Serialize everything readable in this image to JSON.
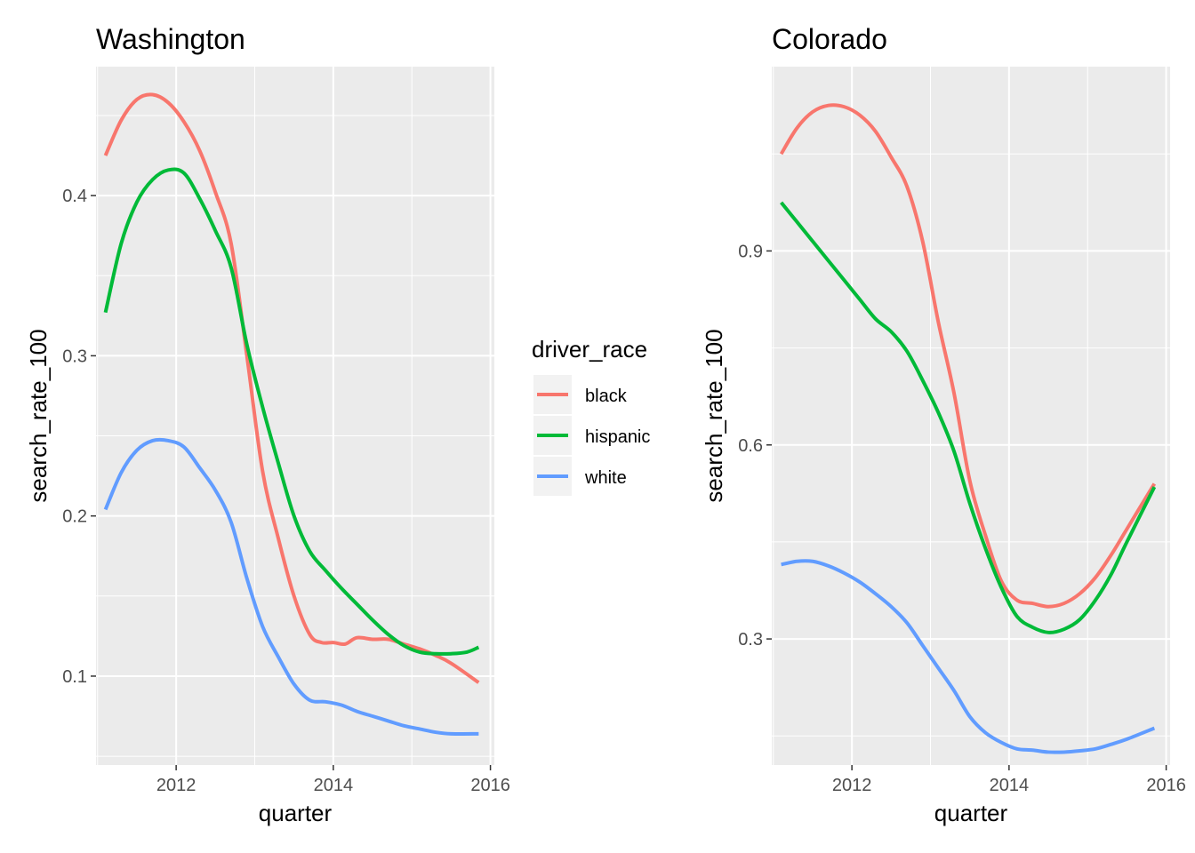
{
  "legend": {
    "title": "driver_race",
    "items": [
      {
        "label": "black",
        "color": "#F8766D"
      },
      {
        "label": "hispanic",
        "color": "#00BA38"
      },
      {
        "label": "white",
        "color": "#619CFF"
      }
    ]
  },
  "chart_data": [
    {
      "type": "line",
      "title": "Washington",
      "xlabel": "quarter",
      "ylabel": "search_rate_100",
      "xlim": [
        2010.98,
        2016.05
      ],
      "ylim": [
        0.0445,
        0.4805
      ],
      "x_ticks": [
        2012,
        2014,
        2016
      ],
      "y_ticks": [
        0.1,
        0.2,
        0.3,
        0.4
      ],
      "grid": true,
      "series": [
        {
          "name": "black",
          "color": "#F8766D",
          "x": [
            2011.1,
            2011.3,
            2011.5,
            2011.7,
            2011.9,
            2012.1,
            2012.3,
            2012.5,
            2012.7,
            2012.9,
            2013.1,
            2013.3,
            2013.5,
            2013.7,
            2013.85,
            2014.0,
            2014.15,
            2014.3,
            2014.5,
            2014.7,
            2014.9,
            2015.1,
            2015.3,
            2015.5,
            2015.85
          ],
          "y": [
            0.425,
            0.447,
            0.46,
            0.463,
            0.458,
            0.446,
            0.428,
            0.402,
            0.37,
            0.3,
            0.228,
            0.186,
            0.15,
            0.126,
            0.121,
            0.121,
            0.12,
            0.124,
            0.123,
            0.123,
            0.12,
            0.117,
            0.113,
            0.108,
            0.096
          ]
        },
        {
          "name": "hispanic",
          "color": "#00BA38",
          "x": [
            2011.1,
            2011.3,
            2011.5,
            2011.7,
            2011.9,
            2012.1,
            2012.3,
            2012.5,
            2012.7,
            2012.9,
            2013.1,
            2013.3,
            2013.5,
            2013.7,
            2013.9,
            2014.1,
            2014.3,
            2014.5,
            2014.7,
            2014.9,
            2015.1,
            2015.3,
            2015.5,
            2015.7,
            2015.85
          ],
          "y": [
            0.327,
            0.37,
            0.396,
            0.41,
            0.416,
            0.414,
            0.398,
            0.378,
            0.355,
            0.307,
            0.268,
            0.233,
            0.2,
            0.178,
            0.166,
            0.155,
            0.145,
            0.135,
            0.126,
            0.119,
            0.115,
            0.114,
            0.114,
            0.115,
            0.118
          ]
        },
        {
          "name": "white",
          "color": "#619CFF",
          "x": [
            2011.1,
            2011.3,
            2011.5,
            2011.7,
            2011.9,
            2012.1,
            2012.3,
            2012.5,
            2012.7,
            2012.9,
            2013.1,
            2013.3,
            2013.5,
            2013.7,
            2013.9,
            2014.1,
            2014.3,
            2014.5,
            2014.7,
            2014.9,
            2015.1,
            2015.3,
            2015.5,
            2015.85
          ],
          "y": [
            0.204,
            0.227,
            0.241,
            0.247,
            0.247,
            0.243,
            0.23,
            0.216,
            0.196,
            0.161,
            0.131,
            0.112,
            0.095,
            0.085,
            0.084,
            0.082,
            0.078,
            0.075,
            0.072,
            0.069,
            0.067,
            0.065,
            0.064,
            0.064
          ]
        }
      ]
    },
    {
      "type": "line",
      "title": "Colorado",
      "xlabel": "quarter",
      "ylabel": "search_rate_100",
      "xlim": [
        2010.98,
        2016.05
      ],
      "ylim": [
        0.105,
        1.185
      ],
      "x_ticks": [
        2012,
        2014,
        2016
      ],
      "y_ticks": [
        0.3,
        0.6,
        0.9
      ],
      "grid": true,
      "series": [
        {
          "name": "black",
          "color": "#F8766D",
          "x": [
            2011.1,
            2011.3,
            2011.5,
            2011.7,
            2011.9,
            2012.1,
            2012.3,
            2012.5,
            2012.7,
            2012.9,
            2013.1,
            2013.3,
            2013.5,
            2013.7,
            2013.9,
            2014.1,
            2014.3,
            2014.5,
            2014.7,
            2014.9,
            2015.1,
            2015.3,
            2015.5,
            2015.85
          ],
          "y": [
            1.05,
            1.09,
            1.115,
            1.125,
            1.123,
            1.11,
            1.085,
            1.045,
            1.0,
            0.915,
            0.79,
            0.68,
            0.545,
            0.46,
            0.39,
            0.36,
            0.355,
            0.35,
            0.355,
            0.37,
            0.395,
            0.43,
            0.47,
            0.54
          ]
        },
        {
          "name": "hispanic",
          "color": "#00BA38",
          "x": [
            2011.1,
            2011.3,
            2011.5,
            2011.7,
            2011.9,
            2012.1,
            2012.3,
            2012.5,
            2012.7,
            2012.9,
            2013.1,
            2013.3,
            2013.5,
            2013.7,
            2013.9,
            2014.1,
            2014.3,
            2014.5,
            2014.7,
            2014.9,
            2015.1,
            2015.3,
            2015.5,
            2015.85
          ],
          "y": [
            0.975,
            0.945,
            0.915,
            0.885,
            0.855,
            0.825,
            0.795,
            0.775,
            0.745,
            0.7,
            0.65,
            0.59,
            0.51,
            0.44,
            0.38,
            0.335,
            0.318,
            0.31,
            0.315,
            0.33,
            0.36,
            0.4,
            0.45,
            0.535
          ]
        },
        {
          "name": "white",
          "color": "#619CFF",
          "x": [
            2011.1,
            2011.3,
            2011.5,
            2011.7,
            2011.9,
            2012.1,
            2012.3,
            2012.5,
            2012.7,
            2012.9,
            2013.1,
            2013.3,
            2013.5,
            2013.7,
            2013.9,
            2014.1,
            2014.3,
            2014.5,
            2014.7,
            2014.9,
            2015.1,
            2015.3,
            2015.5,
            2015.85
          ],
          "y": [
            0.415,
            0.42,
            0.42,
            0.413,
            0.402,
            0.388,
            0.37,
            0.35,
            0.325,
            0.29,
            0.255,
            0.22,
            0.18,
            0.155,
            0.14,
            0.13,
            0.128,
            0.125,
            0.125,
            0.127,
            0.13,
            0.137,
            0.145,
            0.162
          ]
        }
      ]
    }
  ]
}
